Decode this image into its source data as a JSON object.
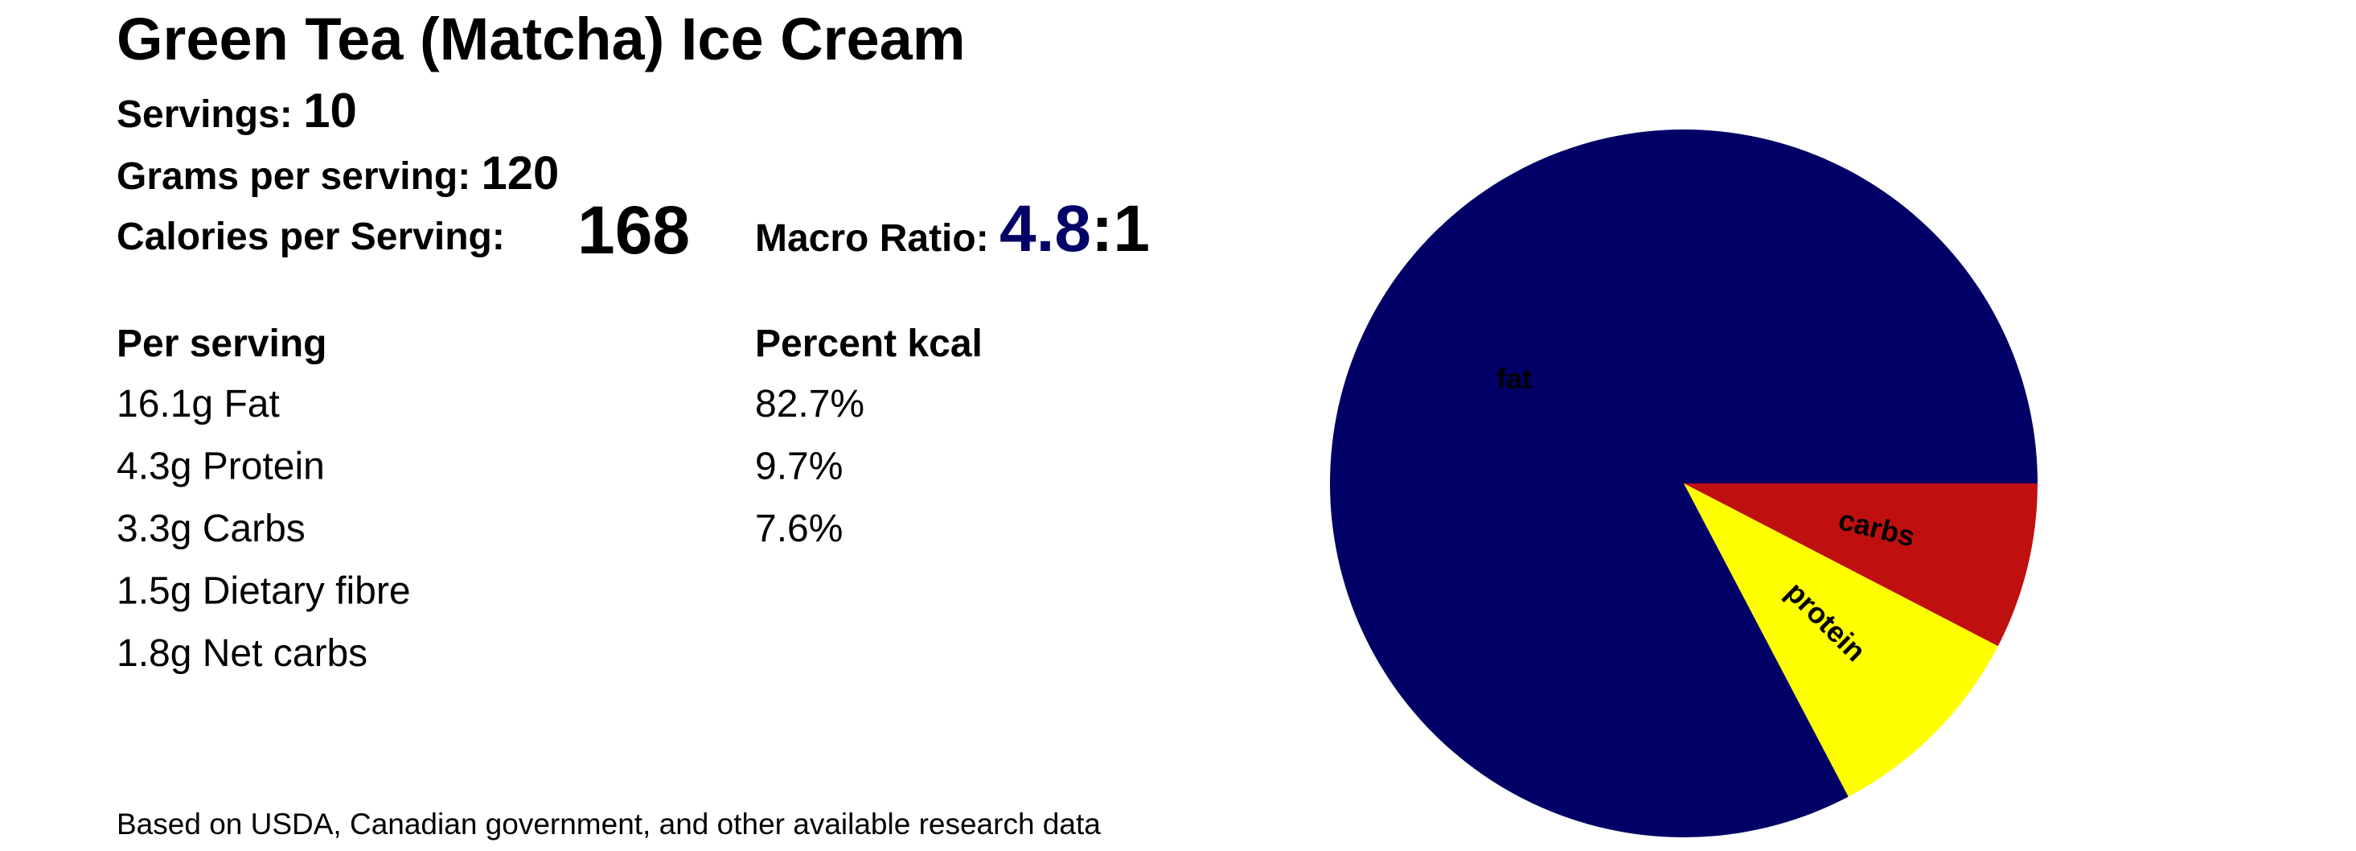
{
  "header": {
    "title": "Green Tea (Matcha) Ice Cream",
    "servings": {
      "label": "Servings:",
      "value": "10"
    },
    "grams": {
      "label": "Grams per serving:",
      "value": "120"
    },
    "calories": {
      "label": "Calories per Serving:",
      "value": "168"
    },
    "macro_ratio": {
      "label": "Macro Ratio:",
      "value": "4.8",
      "suffix": ":1"
    }
  },
  "table": {
    "headers": [
      "Per serving",
      "Percent kcal"
    ],
    "rows": [
      [
        "16.1g Fat",
        "82.7%"
      ],
      [
        "4.3g Protein",
        "9.7%"
      ],
      [
        "3.3g Carbs",
        "7.6%"
      ],
      [
        "1.5g Dietary fibre"
      ],
      [
        "1.8g Net carbs"
      ]
    ]
  },
  "footnote": "Based on USDA, Canadian government, and other available research data",
  "chart_data": {
    "type": "pie",
    "categories": [
      "carbs",
      "protein",
      "fat"
    ],
    "values": [
      7.6,
      9.7,
      82.7
    ],
    "colors": [
      "#c00f0f",
      "#ffff00",
      "#000066"
    ],
    "label_colors": [
      "#ffff00",
      "#0000cc",
      "#ffff00"
    ]
  }
}
